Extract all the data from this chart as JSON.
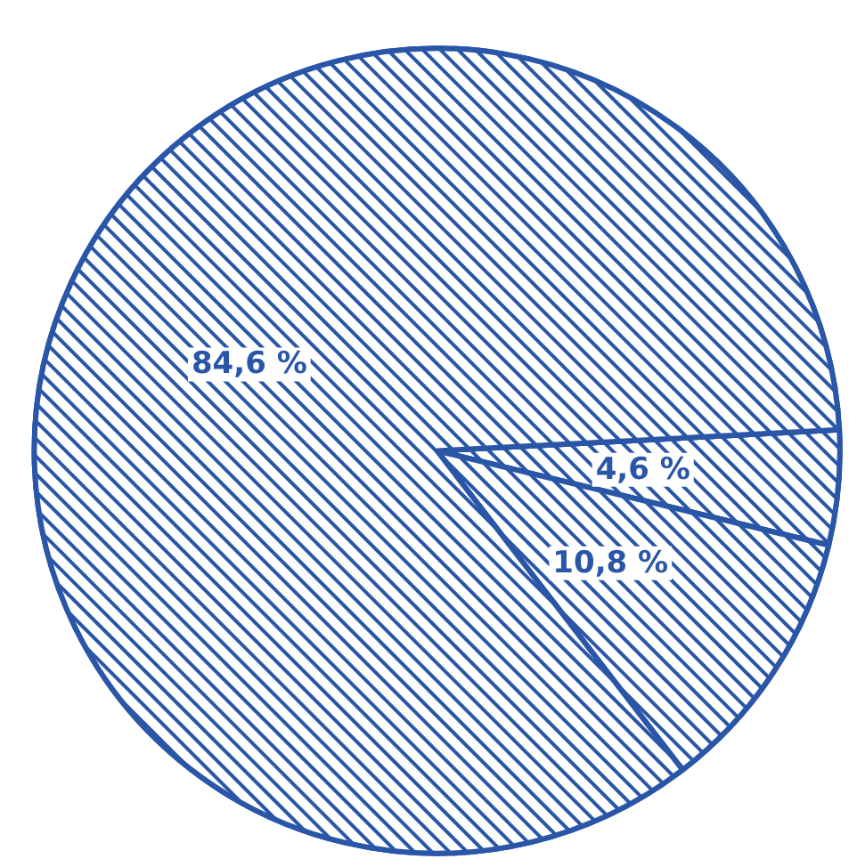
{
  "chart_data": {
    "type": "pie",
    "categories": [
      null,
      null,
      null
    ],
    "values": [
      4.6,
      10.8,
      84.6
    ],
    "value_labels": [
      "4,6 %",
      "10,8 %",
      "84,6 %"
    ],
    "colors": [
      "#2a56a8",
      "#2a56a8",
      "#2a56a8"
    ]
  }
}
